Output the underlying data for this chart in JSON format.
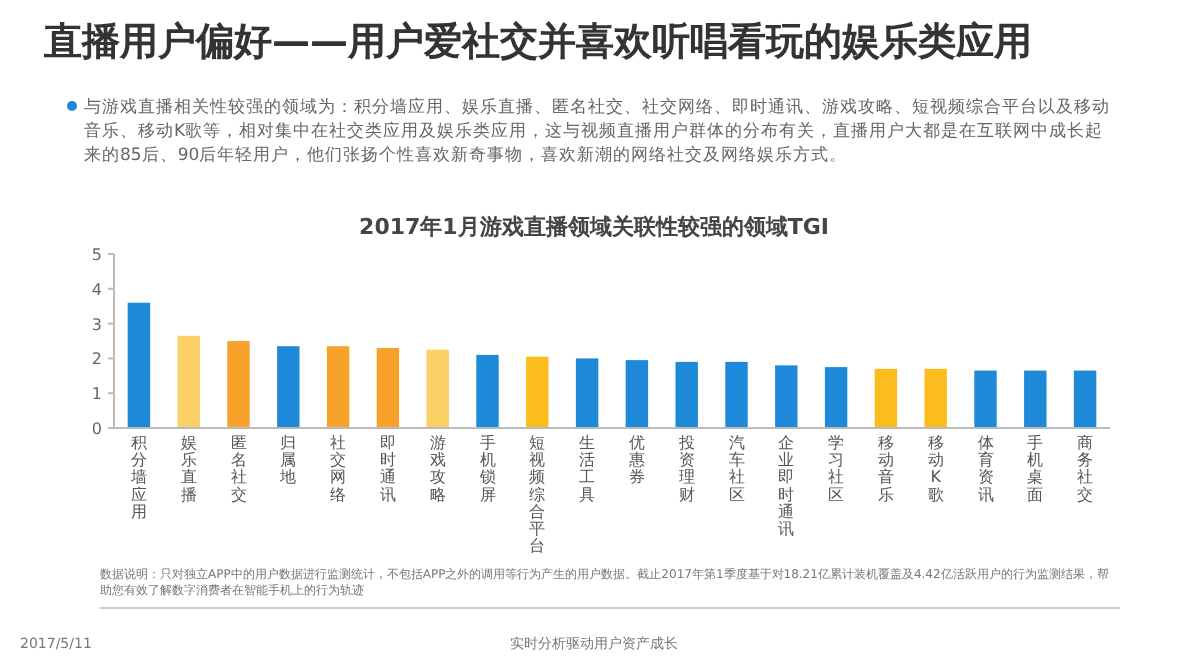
{
  "chart_data": {
    "type": "bar",
    "title": "直播用户偏好——用户爱社交并喜欢听唱看玩的娱乐类应用",
    "subtitle": "与游戏直播相关性较强的领域为：积分墙应用、娱乐直播、匿名社交、社交网络、即时通讯、游戏攻略、短视频综合平台以及移动音乐、移动K歌等，相对集中在社交类应用及娱乐类应用，这与视频直播用户群体的分布有关，直播用户大都是在互联网中成长起来的85后、90后年轻用户，他们张扬个性喜欢新奇事物，喜欢新潮的网络社交及网络娱乐方式。",
    "annotations": [
      "2017年1月游戏直播领域关联性较强的领域TGI",
      "数据说明：只对独立APP中的用户数据进行监测统计，不包括APP之外的调用等行为产生的用户数据。截止2017年第1季度基于对18.21亿累计装机覆盖及4.42亿活跃用户的行为监测结果，帮助您有效了解数字消费者在智能手机上的行为轨迹",
      "2017/5/11",
      "实时分析驱动用户资产成长"
    ],
    "categories": [
      "积分墙应用",
      "娱乐直播",
      "匿名社交",
      "归属地",
      "社交网络",
      "即时通讯",
      "游戏攻略",
      "手机锁屏",
      "短视频综合平台",
      "生活工具",
      "优惠券",
      "投资理财",
      "汽车社区",
      "企业即时通讯",
      "学习社区",
      "移动音乐",
      "移动K歌",
      "体育资讯",
      "手机桌面",
      "商务社交"
    ],
    "values": [
      3.6,
      2.65,
      2.5,
      2.35,
      2.35,
      2.3,
      2.25,
      2.1,
      2.05,
      2.0,
      1.95,
      1.9,
      1.9,
      1.8,
      1.75,
      1.7,
      1.7,
      1.65,
      1.65,
      1.65
    ],
    "colors": [
      "#1e88d9",
      "#fbd065",
      "#f7a32b",
      "#1e88d9",
      "#f7a32b",
      "#f7a32b",
      "#fbd065",
      "#1e88d9",
      "#fbbd1d",
      "#1e88d9",
      "#1e88d9",
      "#1e88d9",
      "#1e88d9",
      "#1e88d9",
      "#1e88d9",
      "#fbbd1d",
      "#fbbd1d",
      "#1e88d9",
      "#1e88d9",
      "#1e88d9"
    ],
    "ylim": [
      0,
      5
    ],
    "yticks": [
      0,
      1,
      2,
      3,
      4,
      5
    ],
    "grid": false
  }
}
